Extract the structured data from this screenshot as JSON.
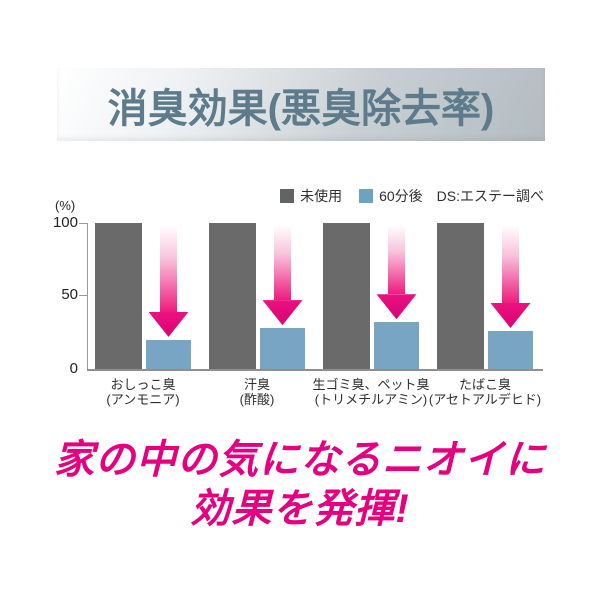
{
  "header": {
    "title": "消臭効果(悪臭除去率)"
  },
  "legend": {
    "items": [
      {
        "label": "未使用",
        "color": "#616366"
      },
      {
        "label": "60分後",
        "color": "#6fa1c1"
      }
    ],
    "note": "DS:エステー調べ"
  },
  "chart_data": {
    "type": "bar",
    "title": "消臭効果(悪臭除去率)",
    "ylabel": "(%)",
    "ylim": [
      0,
      100
    ],
    "yticks": [
      100,
      50,
      0
    ],
    "grid": false,
    "legend_position": "top-right",
    "categories": [
      {
        "line1": "おしっこ臭",
        "line2": "(アンモニア)"
      },
      {
        "line1": "汗臭",
        "line2": "(酢酸)"
      },
      {
        "line1": "生ゴミ臭、ペット臭",
        "line2": "(トリメチルアミン)"
      },
      {
        "line1": "たばこ臭",
        "line2": "(アセトアルデヒド)"
      }
    ],
    "series": [
      {
        "name": "未使用",
        "color": "#6a6a6a",
        "values": [
          100,
          100,
          100,
          100
        ]
      },
      {
        "name": "60分後",
        "color": "#78a5c4",
        "values": [
          20,
          28,
          32,
          26
        ]
      }
    ],
    "annotation": "各組に上から下へ向かう減少を示すピンクの矢印"
  },
  "tagline": {
    "line1": "家の中の気になるニオイに",
    "line2": "効果を発揮!"
  },
  "colors": {
    "accent_magenta": "#e4007f",
    "title_text": "#5e7b8b",
    "banner_gray": "#b3bcc1",
    "axis_gray": "#9a9a9a"
  }
}
